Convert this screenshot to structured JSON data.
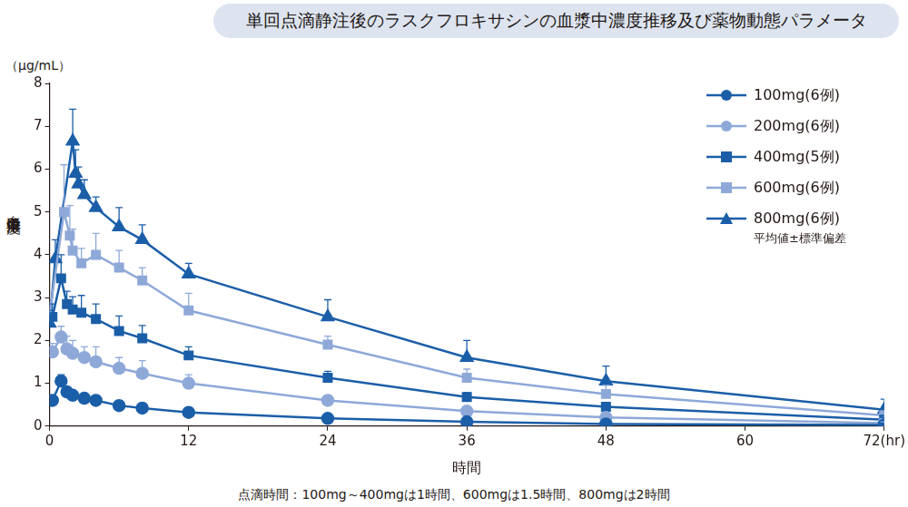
{
  "chart_data": {
    "type": "line",
    "title": "単回点滴静注後のラスクフロキサシンの血漿中濃度推移及び薬物動態パラメータ",
    "y_label": "血漿中濃度",
    "y_unit": "（μg/mL）",
    "x_label": "時間",
    "legend_note": "平均値±標準偏差",
    "footnote": "点滴時間：100mg～400mgは1時間、600mgは1.5時間、800mgは2時間",
    "xlim": [
      0,
      72
    ],
    "xticks": [
      0,
      12,
      24,
      36,
      48,
      60,
      {
        "value": 72,
        "label": "72(hr)"
      }
    ],
    "ylim": [
      0,
      8
    ],
    "yticks": [
      0,
      1,
      2,
      3,
      4,
      5,
      6,
      7,
      8
    ],
    "grid": false,
    "legend": "upper right",
    "series": [
      {
        "name": "100mg(6例)",
        "color": "#1b5ea8",
        "marker": "circle",
        "x": [
          0.25,
          1,
          1.5,
          2,
          3,
          4,
          6,
          8,
          12,
          24,
          36,
          48,
          72
        ],
        "values": [
          0.6,
          1.05,
          0.8,
          0.72,
          0.65,
          0.6,
          0.48,
          0.42,
          0.32,
          0.18,
          0.1,
          0.05,
          0.03
        ],
        "errors": [
          0.1,
          0.15,
          0.1,
          0.1,
          0.08,
          0.08,
          0.06,
          0.05,
          0.04,
          0.03,
          0.02,
          0.02,
          0.01
        ]
      },
      {
        "name": "200mg(6例)",
        "color": "#8ea8d8",
        "marker": "circle",
        "x": [
          0.25,
          1,
          1.5,
          2,
          3,
          4,
          6,
          8,
          12,
          24,
          36,
          48,
          72
        ],
        "values": [
          1.73,
          2.08,
          1.8,
          1.7,
          1.6,
          1.5,
          1.35,
          1.23,
          1.0,
          0.6,
          0.35,
          0.2,
          0.07
        ],
        "errors": [
          0.2,
          0.25,
          0.3,
          0.3,
          0.25,
          0.35,
          0.25,
          0.3,
          0.2,
          0.1,
          0.05,
          0.05,
          0.03
        ]
      },
      {
        "name": "400mg(5例)",
        "color": "#1b5ea8",
        "marker": "square",
        "x": [
          0.25,
          1,
          1.5,
          2,
          2.75,
          4,
          6,
          8,
          12,
          24,
          36,
          48,
          72
        ],
        "values": [
          2.55,
          3.45,
          2.85,
          2.72,
          2.65,
          2.5,
          2.22,
          2.05,
          1.65,
          1.13,
          0.68,
          0.45,
          0.15
        ],
        "errors": [
          0.3,
          0.55,
          0.3,
          0.3,
          0.4,
          0.35,
          0.35,
          0.3,
          0.2,
          0.15,
          0.1,
          0.1,
          0.05
        ]
      },
      {
        "name": "600mg(6例)",
        "color": "#8ea8d8",
        "marker": "square",
        "x": [
          0,
          1.25,
          1.75,
          2,
          2.75,
          4,
          6,
          8,
          12,
          24,
          36,
          48,
          72
        ],
        "values": [
          2.6,
          5.0,
          4.45,
          4.1,
          3.8,
          4.0,
          3.7,
          3.4,
          2.7,
          1.9,
          1.13,
          0.75,
          0.25
        ],
        "errors": [
          0.3,
          1.1,
          0.7,
          0.5,
          0.35,
          0.5,
          0.4,
          0.3,
          0.4,
          0.2,
          0.2,
          0.2,
          0.1
        ]
      },
      {
        "name": "800mg(6例)",
        "color": "#1b5ea8",
        "marker": "triangle",
        "x": [
          0,
          0.5,
          2,
          2.25,
          2.5,
          3,
          4,
          6,
          8,
          12,
          24,
          36,
          48,
          72
        ],
        "values": [
          2.4,
          3.9,
          6.65,
          5.9,
          5.65,
          5.4,
          5.1,
          4.65,
          4.35,
          3.55,
          2.55,
          1.6,
          1.05,
          0.38
        ],
        "errors": [
          0.3,
          0.45,
          0.75,
          0.55,
          0.4,
          0.35,
          0.25,
          0.45,
          0.35,
          0.25,
          0.4,
          0.4,
          0.35,
          0.25
        ]
      }
    ]
  }
}
